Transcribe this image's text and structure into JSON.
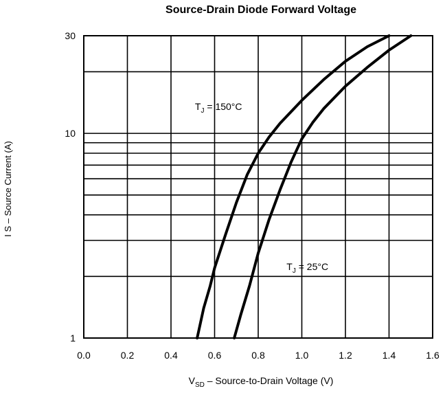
{
  "chart_data": {
    "type": "line",
    "title": "Source-Drain Diode Forward Voltage",
    "xlabel": "VₛD – Source-to-Drain Voltage (V)",
    "xlabel_main": "V",
    "xlabel_sub": "SD",
    "xlabel_rest": " –  Source-to-Drain Voltage (V)",
    "ylabel": "I S –  Source Current (A)",
    "xlim": [
      0.0,
      1.6
    ],
    "ylim": [
      1,
      30
    ],
    "yscale": "log",
    "grid": true,
    "x_ticks": [
      "0.0",
      "0.2",
      "0.4",
      "0.6",
      "0.8",
      "1.0",
      "1.2",
      "1.4",
      "1.6"
    ],
    "y_ticks": [
      "1",
      "10",
      "30"
    ],
    "series": [
      {
        "name": "T_J = 150°C",
        "label_main": "T",
        "label_sub": "J",
        "label_rest": " = 150°C",
        "x": [
          0.52,
          0.55,
          0.58,
          0.6,
          0.65,
          0.7,
          0.75,
          0.8,
          0.85,
          0.9,
          1.0,
          1.1,
          1.2,
          1.3,
          1.4
        ],
        "y": [
          1.0,
          1.4,
          1.8,
          2.2,
          3.2,
          4.6,
          6.3,
          8.0,
          9.6,
          11.2,
          14.5,
          18.3,
          22.5,
          26.5,
          30.0
        ]
      },
      {
        "name": "T_J = 25°C",
        "label_main": "T",
        "label_sub": "J",
        "label_rest": " = 25°C",
        "x": [
          0.69,
          0.72,
          0.76,
          0.8,
          0.85,
          0.9,
          0.95,
          1.0,
          1.05,
          1.1,
          1.2,
          1.3,
          1.4,
          1.5
        ],
        "y": [
          1.0,
          1.3,
          1.8,
          2.6,
          3.8,
          5.3,
          7.2,
          9.4,
          11.3,
          13.2,
          17.0,
          21.0,
          25.5,
          30.0
        ]
      }
    ]
  }
}
